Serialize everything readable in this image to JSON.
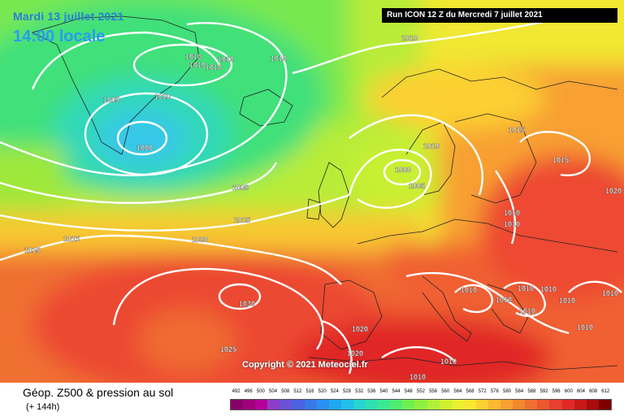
{
  "header": {
    "date_label": "Mardi 13 juillet 2021",
    "time_label": "14:00 locale",
    "run_label": "Run ICON 12 Z du Mercredi 7 juillet 2021"
  },
  "map": {
    "copyright": "Copyright © 2021 Meteociel.fr",
    "isobar_labels": [
      "1010",
      "1010",
      "1010",
      "1010",
      "1010",
      "1005",
      "1010",
      "1000",
      "1010",
      "1015",
      "1010",
      "1000",
      "1005",
      "1015",
      "1005",
      "1015",
      "1015",
      "1020",
      "1015",
      "1020",
      "1030",
      "1025",
      "1020",
      "1020",
      "1010",
      "1010",
      "1010",
      "1010",
      "1010",
      "1010",
      "1010",
      "1010",
      "1010",
      "1010",
      "1010",
      "1010"
    ]
  },
  "footer": {
    "title": "Géop. Z500 & pression au sol",
    "subtitle": "(+ 144h)",
    "scale_values": [
      "492",
      "496",
      "500",
      "504",
      "508",
      "512",
      "516",
      "520",
      "524",
      "528",
      "532",
      "536",
      "540",
      "544",
      "548",
      "552",
      "556",
      "560",
      "564",
      "568",
      "572",
      "576",
      "580",
      "584",
      "588",
      "592",
      "596",
      "600",
      "604",
      "608",
      "612"
    ],
    "scale_colors": [
      "#8a006a",
      "#a0007a",
      "#b4009a",
      "#8c3cc8",
      "#6a52d6",
      "#4a62e0",
      "#3a78ea",
      "#2a90f0",
      "#20a8f0",
      "#20c0e8",
      "#28d4d0",
      "#30e0b0",
      "#3ce890",
      "#50ec70",
      "#70f050",
      "#90f040",
      "#b0f038",
      "#d0f030",
      "#ecf030",
      "#f8e830",
      "#fcd030",
      "#fcb830",
      "#f8a030",
      "#f48830",
      "#f07030",
      "#ec5830",
      "#e84030",
      "#e02828",
      "#c81818",
      "#a80c0c",
      "#800000"
    ]
  }
}
